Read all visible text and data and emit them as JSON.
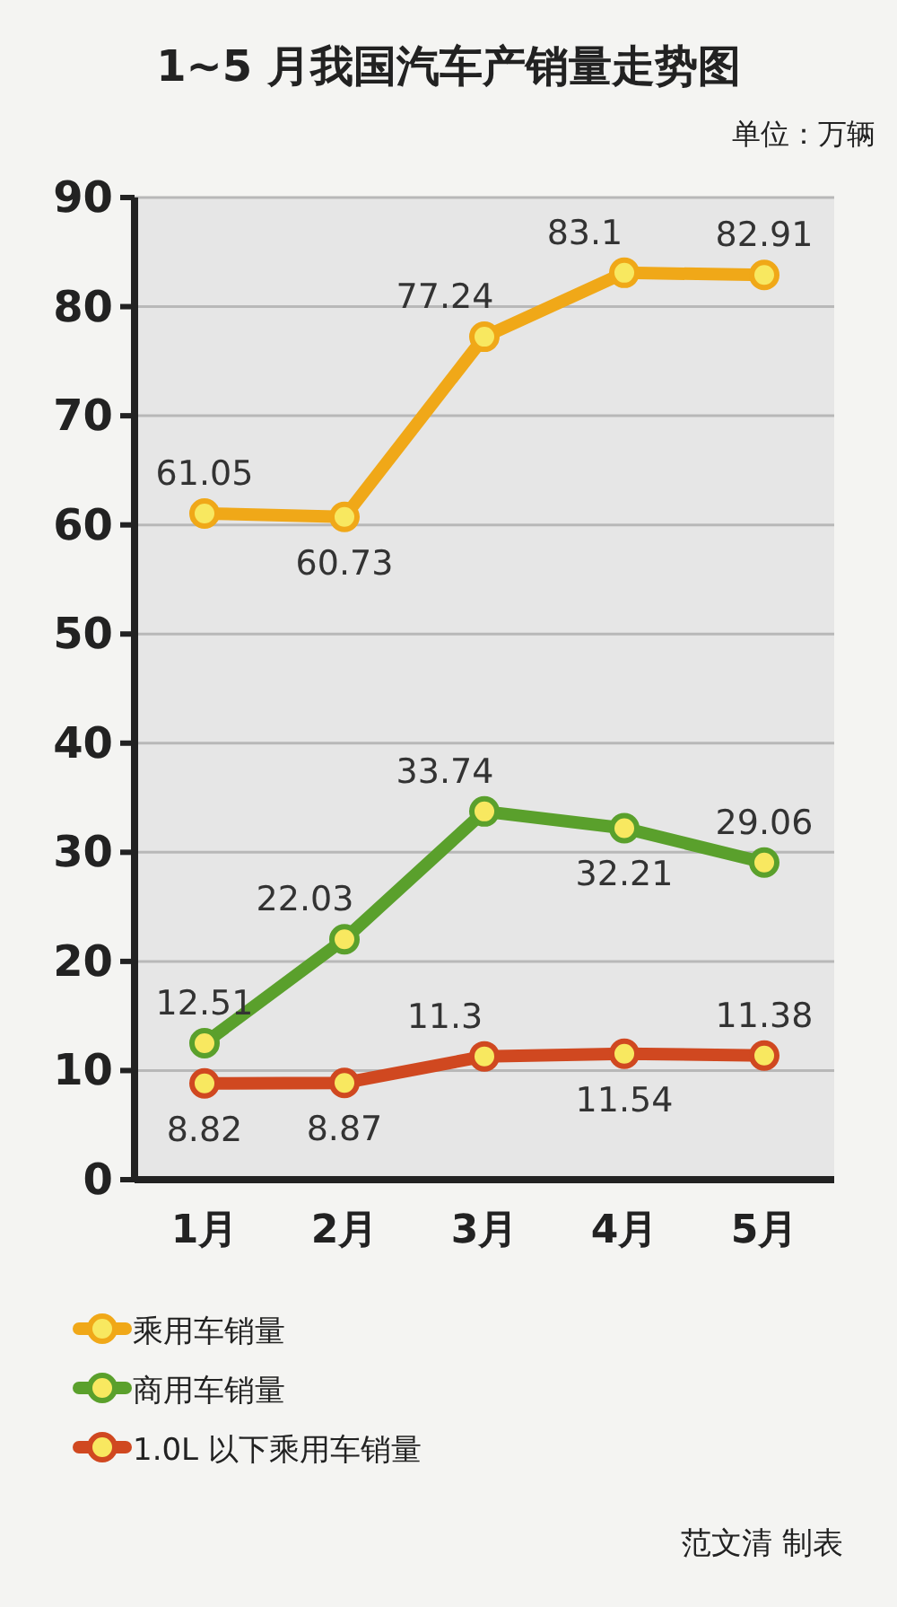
{
  "chart_data": {
    "type": "line",
    "title": "1~5 月我国汽车产销量走势图",
    "subtitle": "单位：万辆",
    "categories": [
      "1月",
      "2月",
      "3月",
      "4月",
      "5月"
    ],
    "series": [
      {
        "name": "乘用车销量",
        "color": "#f0a818",
        "values": [
          61.05,
          60.73,
          77.24,
          83.1,
          82.91
        ]
      },
      {
        "name": "商用车销量",
        "color": "#5aa02c",
        "values": [
          12.51,
          22.03,
          33.74,
          32.21,
          29.06
        ]
      },
      {
        "name": "1.0L 以下乘用车销量",
        "color": "#d04820",
        "values": [
          8.82,
          8.87,
          11.3,
          11.54,
          11.38
        ]
      }
    ],
    "ylim": [
      0,
      90
    ],
    "yticks": [
      0,
      10,
      20,
      30,
      40,
      50,
      60,
      70,
      80,
      90
    ],
    "grid": "y",
    "legend": "bottom",
    "marker": "circle",
    "data_labels": true,
    "annotations": [
      "范文清 制表"
    ]
  }
}
